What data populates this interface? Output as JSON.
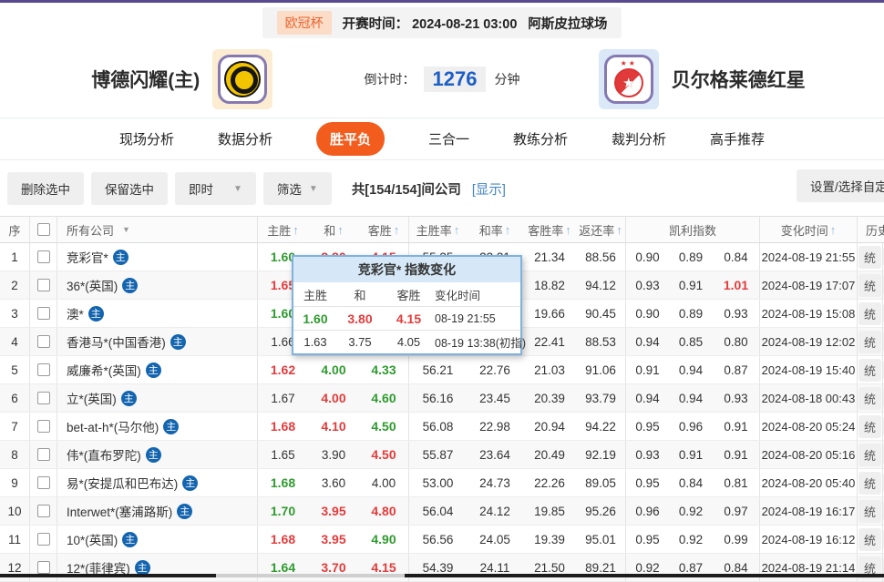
{
  "colors": {
    "accent_orange": "#f25c1d",
    "odds_up_red": "#e43b3b",
    "odds_down_green": "#2f9b2f",
    "countdown_blue": "#1d5ec7",
    "link_blue": "#4285c8",
    "top_line_purple": "#584a8f"
  },
  "icons": {
    "sort": "↑",
    "dropdown": "▼",
    "caret": "▾",
    "star": "★",
    "home_badge": "主"
  },
  "top_bar": {
    "league": "欧冠杯",
    "kickoff_label": "开赛时间：",
    "kickoff_time": "2024-08-21 03:00",
    "venue": "阿斯皮拉球场"
  },
  "match": {
    "home_name": "博德闪耀(主)",
    "away_name": "贝尔格莱德红星",
    "countdown_label": "倒计时：",
    "countdown_value": "1276",
    "countdown_unit": "分钟"
  },
  "tabs": [
    {
      "label": "现场分析",
      "active": false
    },
    {
      "label": "数据分析",
      "active": false
    },
    {
      "label": "胜平负",
      "active": true
    },
    {
      "label": "三合一",
      "active": false
    },
    {
      "label": "教练分析",
      "active": false
    },
    {
      "label": "裁判分析",
      "active": false
    },
    {
      "label": "高手推荐",
      "active": false
    }
  ],
  "toolbar": {
    "delete_label": "删除选中",
    "keep_label": "保留选中",
    "time_filter_value": "即时",
    "filter_label": "筛选",
    "count_text": "共[154/154]间公司",
    "show_link": "[显示]",
    "settings_label": "设置/选择自定"
  },
  "table": {
    "headers": {
      "seq": "序",
      "company": "所有公司",
      "home": "主胜",
      "draw": "和",
      "away": "客胜",
      "home_rate": "主胜率",
      "draw_rate": "和率",
      "away_rate": "客胜率",
      "return_rate": "返还率",
      "kelly": "凯利指数",
      "change_time": "变化时间",
      "partial_right": "历史"
    },
    "action_label": "统",
    "rows": [
      {
        "idx": "1",
        "company": "竞彩官*",
        "odds": [
          {
            "v": "1.60",
            "c": "g"
          },
          {
            "v": "3.80",
            "c": "r"
          },
          {
            "v": "4.15",
            "c": "r"
          }
        ],
        "rates": [
          "55.35",
          "23.31",
          "21.34",
          "88.56"
        ],
        "kelly": [
          {
            "v": "0.90",
            "c": ""
          },
          {
            "v": "0.89",
            "c": ""
          },
          {
            "v": "0.84",
            "c": ""
          }
        ],
        "time": "2024-08-19 21:55"
      },
      {
        "idx": "2",
        "company": "36*(英国)",
        "odds": [
          {
            "v": "1.65",
            "c": "r"
          },
          {
            "v": "",
            "c": ""
          },
          {
            "v": "",
            "c": ""
          }
        ],
        "rates": [
          "",
          "",
          "18.82",
          "94.12"
        ],
        "kelly": [
          {
            "v": "0.93",
            "c": ""
          },
          {
            "v": "0.91",
            "c": ""
          },
          {
            "v": "1.01",
            "c": "r"
          }
        ],
        "time": "2024-08-19 17:07"
      },
      {
        "idx": "3",
        "company": "澳*",
        "odds": [
          {
            "v": "1.60",
            "c": "g"
          },
          {
            "v": "",
            "c": ""
          },
          {
            "v": "",
            "c": ""
          }
        ],
        "rates": [
          "",
          "",
          "19.66",
          "90.45"
        ],
        "kelly": [
          {
            "v": "0.90",
            "c": ""
          },
          {
            "v": "0.89",
            "c": ""
          },
          {
            "v": "0.93",
            "c": ""
          }
        ],
        "time": "2024-08-19 15:08"
      },
      {
        "idx": "4",
        "company": "香港马*(中国香港)",
        "odds": [
          {
            "v": "1.66",
            "c": ""
          },
          {
            "v": "",
            "c": ""
          },
          {
            "v": "",
            "c": ""
          }
        ],
        "rates": [
          "",
          "",
          "22.41",
          "88.53"
        ],
        "kelly": [
          {
            "v": "0.94",
            "c": ""
          },
          {
            "v": "0.85",
            "c": ""
          },
          {
            "v": "0.80",
            "c": ""
          }
        ],
        "time": "2024-08-19 12:02"
      },
      {
        "idx": "5",
        "company": "威廉希*(英国)",
        "odds": [
          {
            "v": "1.62",
            "c": "r"
          },
          {
            "v": "4.00",
            "c": "g"
          },
          {
            "v": "4.33",
            "c": "g"
          }
        ],
        "rates": [
          "56.21",
          "22.76",
          "21.03",
          "91.06"
        ],
        "kelly": [
          {
            "v": "0.91",
            "c": ""
          },
          {
            "v": "0.94",
            "c": ""
          },
          {
            "v": "0.87",
            "c": ""
          }
        ],
        "time": "2024-08-19 15:40"
      },
      {
        "idx": "6",
        "company": "立*(英国)",
        "odds": [
          {
            "v": "1.67",
            "c": ""
          },
          {
            "v": "4.00",
            "c": "r"
          },
          {
            "v": "4.60",
            "c": "g"
          }
        ],
        "rates": [
          "56.16",
          "23.45",
          "20.39",
          "93.79"
        ],
        "kelly": [
          {
            "v": "0.94",
            "c": ""
          },
          {
            "v": "0.94",
            "c": ""
          },
          {
            "v": "0.93",
            "c": ""
          }
        ],
        "time": "2024-08-18 00:43"
      },
      {
        "idx": "7",
        "company": "bet-at-h*(马尔他)",
        "odds": [
          {
            "v": "1.68",
            "c": "r"
          },
          {
            "v": "4.10",
            "c": "r"
          },
          {
            "v": "4.50",
            "c": "g"
          }
        ],
        "rates": [
          "56.08",
          "22.98",
          "20.94",
          "94.22"
        ],
        "kelly": [
          {
            "v": "0.95",
            "c": ""
          },
          {
            "v": "0.96",
            "c": ""
          },
          {
            "v": "0.91",
            "c": ""
          }
        ],
        "time": "2024-08-20 05:24"
      },
      {
        "idx": "8",
        "company": "伟*(直布罗陀)",
        "odds": [
          {
            "v": "1.65",
            "c": ""
          },
          {
            "v": "3.90",
            "c": ""
          },
          {
            "v": "4.50",
            "c": "r"
          }
        ],
        "rates": [
          "55.87",
          "23.64",
          "20.49",
          "92.19"
        ],
        "kelly": [
          {
            "v": "0.93",
            "c": ""
          },
          {
            "v": "0.91",
            "c": ""
          },
          {
            "v": "0.91",
            "c": ""
          }
        ],
        "time": "2024-08-20 05:16"
      },
      {
        "idx": "9",
        "company": "易*(安提瓜和巴布达)",
        "odds": [
          {
            "v": "1.68",
            "c": "g"
          },
          {
            "v": "3.60",
            "c": ""
          },
          {
            "v": "4.00",
            "c": ""
          }
        ],
        "rates": [
          "53.00",
          "24.73",
          "22.26",
          "89.05"
        ],
        "kelly": [
          {
            "v": "0.95",
            "c": ""
          },
          {
            "v": "0.84",
            "c": ""
          },
          {
            "v": "0.81",
            "c": ""
          }
        ],
        "time": "2024-08-20 05:40"
      },
      {
        "idx": "10",
        "company": "Interwet*(塞浦路斯)",
        "odds": [
          {
            "v": "1.70",
            "c": "g"
          },
          {
            "v": "3.95",
            "c": "r"
          },
          {
            "v": "4.80",
            "c": "r"
          }
        ],
        "rates": [
          "56.04",
          "24.12",
          "19.85",
          "95.26"
        ],
        "kelly": [
          {
            "v": "0.96",
            "c": ""
          },
          {
            "v": "0.92",
            "c": ""
          },
          {
            "v": "0.97",
            "c": ""
          }
        ],
        "time": "2024-08-19 16:17"
      },
      {
        "idx": "11",
        "company": "10*(英国)",
        "odds": [
          {
            "v": "1.68",
            "c": "r"
          },
          {
            "v": "3.95",
            "c": "r"
          },
          {
            "v": "4.90",
            "c": "g"
          }
        ],
        "rates": [
          "56.56",
          "24.05",
          "19.39",
          "95.01"
        ],
        "kelly": [
          {
            "v": "0.95",
            "c": ""
          },
          {
            "v": "0.92",
            "c": ""
          },
          {
            "v": "0.99",
            "c": ""
          }
        ],
        "time": "2024-08-19 16:12"
      },
      {
        "idx": "12",
        "company": "12*(菲律宾)",
        "odds": [
          {
            "v": "1.64",
            "c": "g"
          },
          {
            "v": "3.70",
            "c": "r"
          },
          {
            "v": "4.15",
            "c": "r"
          }
        ],
        "rates": [
          "54.39",
          "24.11",
          "21.50",
          "89.21"
        ],
        "kelly": [
          {
            "v": "0.92",
            "c": ""
          },
          {
            "v": "0.87",
            "c": ""
          },
          {
            "v": "0.84",
            "c": ""
          }
        ],
        "time": "2024-08-19 21:14"
      }
    ]
  },
  "popup": {
    "title": "竞彩官* 指数变化",
    "headers": [
      "主胜",
      "和",
      "客胜",
      "变化时间"
    ],
    "rows": [
      {
        "cells": [
          {
            "v": "1.60",
            "c": "g"
          },
          {
            "v": "3.80",
            "c": "r"
          },
          {
            "v": "4.15",
            "c": "r"
          },
          {
            "v": "08-19 21:55",
            "c": ""
          }
        ]
      },
      {
        "cells": [
          {
            "v": "1.63",
            "c": ""
          },
          {
            "v": "3.75",
            "c": ""
          },
          {
            "v": "4.05",
            "c": ""
          },
          {
            "v": "08-19 13:38(初指)",
            "c": ""
          }
        ]
      }
    ]
  }
}
